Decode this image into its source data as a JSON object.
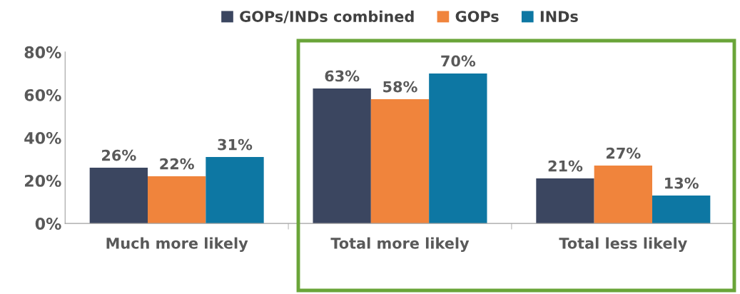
{
  "chart_data": {
    "type": "bar",
    "categories": [
      "Much more likely",
      "Total more likely",
      "Total less likely"
    ],
    "series": [
      {
        "name": "GOPs/INDs combined",
        "color": "#3b4660",
        "values": [
          26,
          63,
          21
        ]
      },
      {
        "name": "GOPs",
        "color": "#f0843c",
        "values": [
          22,
          58,
          27
        ]
      },
      {
        "name": "INDs",
        "color": "#0d77a3",
        "values": [
          31,
          70,
          13
        ]
      }
    ],
    "ylim": [
      0,
      80
    ],
    "yticks": [
      {
        "value": 0,
        "label": "0%"
      },
      {
        "value": 20,
        "label": "20%"
      },
      {
        "value": 40,
        "label": "40%"
      },
      {
        "value": 60,
        "label": "60%"
      },
      {
        "value": 80,
        "label": "80%"
      }
    ],
    "value_labels": [
      [
        "26%",
        "63%",
        "21%"
      ],
      [
        "22%",
        "58%",
        "27%"
      ],
      [
        "31%",
        "70%",
        "13%"
      ]
    ],
    "legend": "top",
    "grid": false
  }
}
